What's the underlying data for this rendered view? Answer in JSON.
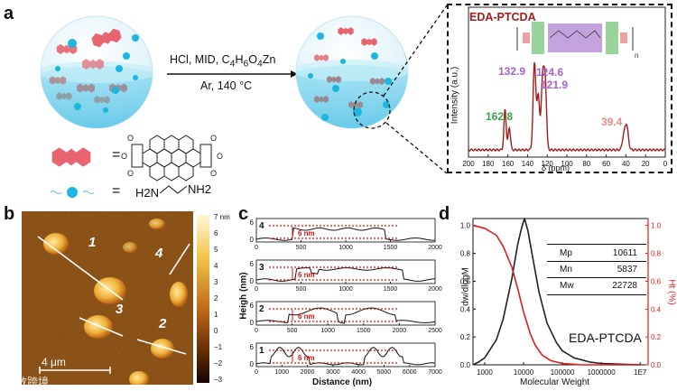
{
  "figure": {
    "panel_labels": {
      "a": "a",
      "b": "b",
      "c": "c",
      "d": "d"
    },
    "watermark": "大数跨境"
  },
  "panel_a": {
    "reaction_line1": "HCl, MID, C4H6O4Zn",
    "reaction_line1_parts": {
      "pre": "HCl, MID, C",
      "sub1": "4",
      "mid1": "H",
      "sub2": "6",
      "mid2": "O",
      "sub3": "4",
      "post": "Zn"
    },
    "reaction_line2": "Ar, 140 °C",
    "legend_equals": "=",
    "amine_label": {
      "h2n": "H2N",
      "nh2": "NH2"
    },
    "colors": {
      "perylene": "#e8646e",
      "sphere_dot": "#1bb7e0",
      "water": "#7fd3ee",
      "oligomer": "#9a8a92"
    },
    "nmr_inset": {
      "title": "EDA-PTCDA",
      "ylabel": "Intensity (a.u.)",
      "xlabel": "δ (ppm)",
      "peak_labels": [
        {
          "text": "162.8",
          "color": "#3aa14a"
        },
        {
          "text": "132.9",
          "color": "#a562c8"
        },
        {
          "text": "124.6",
          "color": "#a562c8"
        },
        {
          "text": "121.9",
          "color": "#a562c8"
        },
        {
          "text": "39.4",
          "color": "#e8898c"
        }
      ],
      "structure_n": "n"
    }
  },
  "panel_b": {
    "colorbar_ticks": [
      "7 nm",
      "6",
      "5",
      "4",
      "3",
      "2",
      "1",
      "0",
      "−1",
      "−2",
      "−3"
    ],
    "scale_bar": "4 μm",
    "line_labels": [
      "1",
      "2",
      "3",
      "4"
    ]
  },
  "panel_c": {
    "ylabel": "Heigh (nm)",
    "xlabel": "Distance (nm)",
    "profiles": [
      {
        "label": "4",
        "xmax": "2000",
        "ticks": [
          "0",
          "500",
          "1000",
          "1500",
          "2000"
        ],
        "ytop": "6",
        "ybottom": "0",
        "annotation": "6 nm"
      },
      {
        "label": "3",
        "xmax": "2000",
        "ticks": [
          "0",
          "500",
          "1000",
          "1500",
          "2000"
        ],
        "ytop": "6",
        "ybottom": "0",
        "annotation": "6 nm"
      },
      {
        "label": "2",
        "xmax": "2500",
        "ticks": [
          "0",
          "500",
          "1000",
          "1500",
          "2000",
          "2500"
        ],
        "ytop": "6",
        "ybottom": "0",
        "annotation": "6 nm"
      },
      {
        "label": "1",
        "xmax": "7000",
        "ticks": [
          "0",
          "1000",
          "2000",
          "3000",
          "4000",
          "5000",
          "6000",
          "7000"
        ],
        "ytop": "6",
        "ybottom": "0",
        "annotation": "6 nm"
      }
    ]
  },
  "panel_d": {
    "table": [
      {
        "key": "Mp",
        "value": "10611"
      },
      {
        "key": "Mn",
        "value": "5837"
      },
      {
        "key": "Mw",
        "value": "22728"
      }
    ],
    "series_label": "EDA-PTCDA",
    "right_axis_label": "Ht (%)"
  },
  "chart_data": [
    {
      "type": "line",
      "id": "nmr",
      "title": "EDA-PTCDA",
      "xlabel": "δ (ppm)",
      "ylabel": "Intensity (a.u.)",
      "xlim": [
        200,
        0
      ],
      "xticks": [
        200,
        180,
        160,
        140,
        120,
        100,
        80,
        60,
        40,
        20,
        0
      ],
      "peaks": [
        {
          "x": 162.8,
          "h": 0.45,
          "w": 1.6
        },
        {
          "x": 158.5,
          "h": 0.25,
          "w": 1.6
        },
        {
          "x": 132.9,
          "h": 0.97,
          "w": 2.0
        },
        {
          "x": 129.0,
          "h": 0.6,
          "w": 1.8
        },
        {
          "x": 124.6,
          "h": 0.82,
          "w": 2.0
        },
        {
          "x": 121.9,
          "h": 0.7,
          "w": 1.8
        },
        {
          "x": 39.4,
          "h": 0.28,
          "w": 2.4
        },
        {
          "x": 42.5,
          "h": 0.12,
          "w": 2.0
        }
      ],
      "color": "#a21d1d"
    },
    {
      "type": "line",
      "id": "gpc",
      "xlabel": "Molecular Weight",
      "ylabel": "dw/dlogM",
      "ylabel_right": "Ht (%)",
      "x_log": true,
      "xticks": [
        "1000",
        "10000",
        "100000",
        "1000000",
        "1E7"
      ],
      "yticks_left": [
        "0.0",
        "0.2",
        "0.4",
        "0.6",
        "0.8",
        "1.0"
      ],
      "yticks_right": [
        "0.0",
        "0.2",
        "0.4",
        "0.6",
        "0.8",
        "1.0"
      ],
      "ylim": [
        0,
        1.05
      ],
      "series": [
        {
          "name": "dw/dlogM",
          "color": "#222222",
          "x": [
            500,
            700,
            1000,
            2000,
            3000,
            5000,
            7000,
            9000,
            10611,
            13000,
            18000,
            25000,
            40000,
            70000,
            100000,
            200000,
            500000,
            1000000,
            10000000
          ],
          "y": [
            0.0,
            0.02,
            0.05,
            0.18,
            0.33,
            0.62,
            0.86,
            0.99,
            1.05,
            0.96,
            0.74,
            0.52,
            0.3,
            0.16,
            0.1,
            0.05,
            0.02,
            0.01,
            0.0
          ]
        },
        {
          "name": "Ht (%)",
          "color": "#e01c1c",
          "x": [
            500,
            1000,
            2000,
            3000,
            5000,
            7000,
            10000,
            15000,
            20000,
            30000,
            50000,
            100000,
            300000,
            1000000,
            10000000
          ],
          "y": [
            1.0,
            0.98,
            0.93,
            0.85,
            0.7,
            0.55,
            0.38,
            0.22,
            0.14,
            0.07,
            0.03,
            0.01,
            0.0,
            0.0,
            0.0
          ]
        }
      ]
    }
  ]
}
